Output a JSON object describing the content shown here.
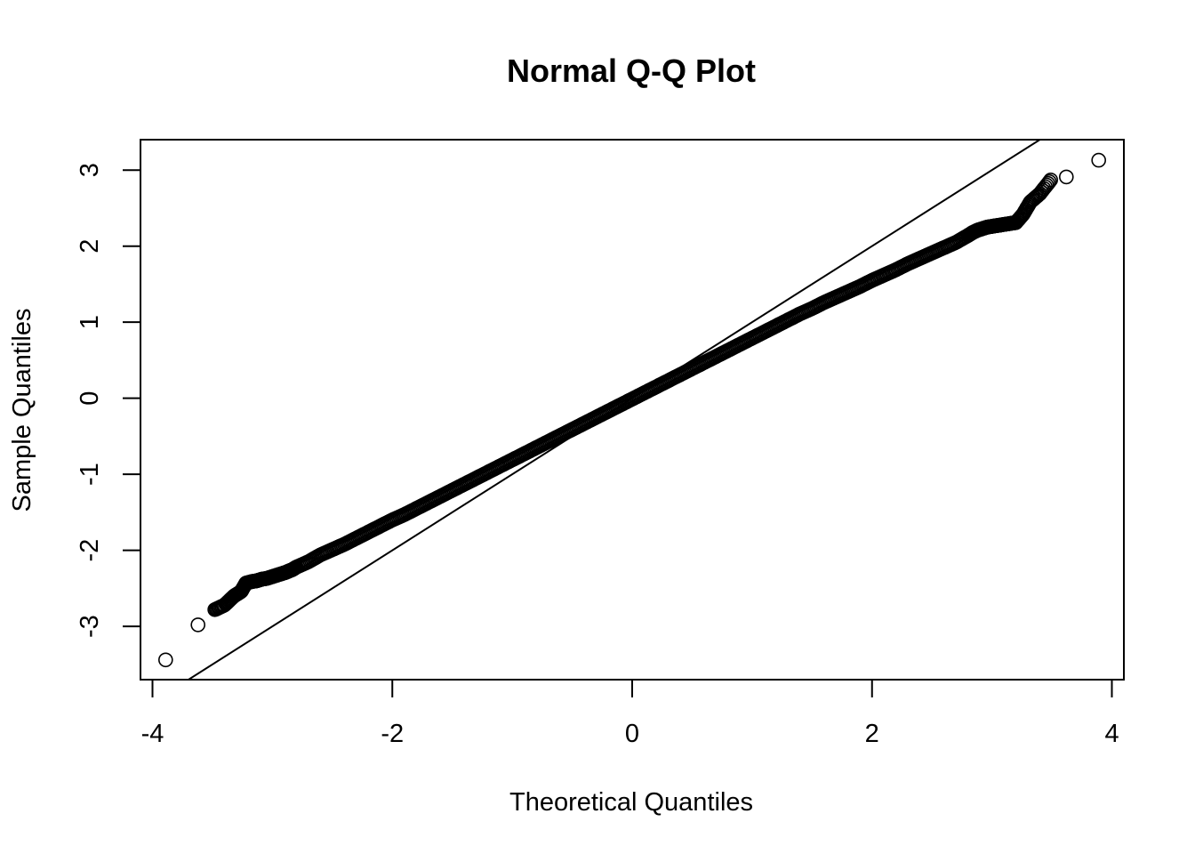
{
  "chart_data": {
    "type": "scatter",
    "title": "Normal Q-Q Plot",
    "xlabel": "Theoretical Quantiles",
    "ylabel": "Sample Quantiles",
    "xlim": [
      -4.1,
      4.1
    ],
    "ylim": [
      -3.7,
      3.4
    ],
    "x_ticks": [
      -4,
      -2,
      0,
      2,
      4
    ],
    "y_ticks": [
      -3,
      -2,
      -1,
      0,
      1,
      2,
      3
    ],
    "x_tick_labels": [
      "-4",
      "-2",
      "0",
      "2",
      "4"
    ],
    "y_tick_labels": [
      "-3",
      "-2",
      "-1",
      "0",
      "1",
      "2",
      "3"
    ],
    "grid": false,
    "legend": "none",
    "point_style": "open-circle",
    "colors": {
      "points": "#000000",
      "line": "#000000",
      "frame": "#000000"
    },
    "reference_line": {
      "slope": 1.0,
      "intercept": 0.0
    },
    "points": [
      [
        -3.89,
        -3.44
      ],
      [
        -3.62,
        -2.98
      ],
      [
        -3.48,
        -2.78
      ],
      [
        -3.4,
        -2.72
      ],
      [
        -3.32,
        -2.6
      ],
      [
        -3.26,
        -2.54
      ],
      [
        -3.22,
        -2.43
      ],
      [
        -3.17,
        -2.41
      ],
      [
        -3.13,
        -2.4
      ],
      [
        -3.09,
        -2.38
      ],
      [
        -3.05,
        -2.37
      ],
      [
        -3.01,
        -2.35
      ],
      [
        -2.97,
        -2.33
      ],
      [
        -2.93,
        -2.31
      ],
      [
        -2.89,
        -2.29
      ],
      [
        -2.86,
        -2.27
      ],
      [
        -2.83,
        -2.25
      ],
      [
        -2.8,
        -2.22
      ],
      [
        -2.7,
        -2.15
      ],
      [
        -2.6,
        -2.06
      ],
      [
        -2.5,
        -1.99
      ],
      [
        -2.4,
        -1.92
      ],
      [
        -2.3,
        -1.84
      ],
      [
        -2.2,
        -1.76
      ],
      [
        -2.1,
        -1.68
      ],
      [
        -2.0,
        -1.6
      ],
      [
        -1.9,
        -1.53
      ],
      [
        -1.8,
        -1.45
      ],
      [
        -1.7,
        -1.37
      ],
      [
        -1.6,
        -1.29
      ],
      [
        -1.5,
        -1.21
      ],
      [
        -1.4,
        -1.13
      ],
      [
        -1.3,
        -1.05
      ],
      [
        -1.2,
        -0.97
      ],
      [
        -1.1,
        -0.89
      ],
      [
        -1.0,
        -0.81
      ],
      [
        -0.9,
        -0.73
      ],
      [
        -0.8,
        -0.65
      ],
      [
        -0.7,
        -0.57
      ],
      [
        -0.6,
        -0.49
      ],
      [
        -0.5,
        -0.41
      ],
      [
        -0.4,
        -0.33
      ],
      [
        -0.3,
        -0.25
      ],
      [
        -0.2,
        -0.17
      ],
      [
        -0.1,
        -0.09
      ],
      [
        0.0,
        -0.01
      ],
      [
        0.1,
        0.07
      ],
      [
        0.2,
        0.15
      ],
      [
        0.3,
        0.23
      ],
      [
        0.4,
        0.31
      ],
      [
        0.5,
        0.39
      ],
      [
        0.6,
        0.47
      ],
      [
        0.7,
        0.55
      ],
      [
        0.8,
        0.63
      ],
      [
        0.9,
        0.71
      ],
      [
        1.0,
        0.79
      ],
      [
        1.1,
        0.87
      ],
      [
        1.2,
        0.95
      ],
      [
        1.3,
        1.03
      ],
      [
        1.4,
        1.11
      ],
      [
        1.5,
        1.18
      ],
      [
        1.6,
        1.26
      ],
      [
        1.7,
        1.33
      ],
      [
        1.8,
        1.4
      ],
      [
        1.9,
        1.47
      ],
      [
        2.0,
        1.55
      ],
      [
        2.1,
        1.62
      ],
      [
        2.2,
        1.69
      ],
      [
        2.3,
        1.77
      ],
      [
        2.4,
        1.84
      ],
      [
        2.5,
        1.91
      ],
      [
        2.6,
        1.98
      ],
      [
        2.7,
        2.05
      ],
      [
        2.8,
        2.14
      ],
      [
        2.84,
        2.18
      ],
      [
        2.88,
        2.21
      ],
      [
        2.92,
        2.23
      ],
      [
        2.96,
        2.25
      ],
      [
        3.0,
        2.26
      ],
      [
        3.04,
        2.27
      ],
      [
        3.08,
        2.28
      ],
      [
        3.12,
        2.29
      ],
      [
        3.16,
        2.3
      ],
      [
        3.2,
        2.31
      ],
      [
        3.26,
        2.42
      ],
      [
        3.32,
        2.58
      ],
      [
        3.4,
        2.69
      ],
      [
        3.49,
        2.87
      ],
      [
        3.62,
        2.91
      ],
      [
        3.89,
        3.13
      ]
    ]
  }
}
